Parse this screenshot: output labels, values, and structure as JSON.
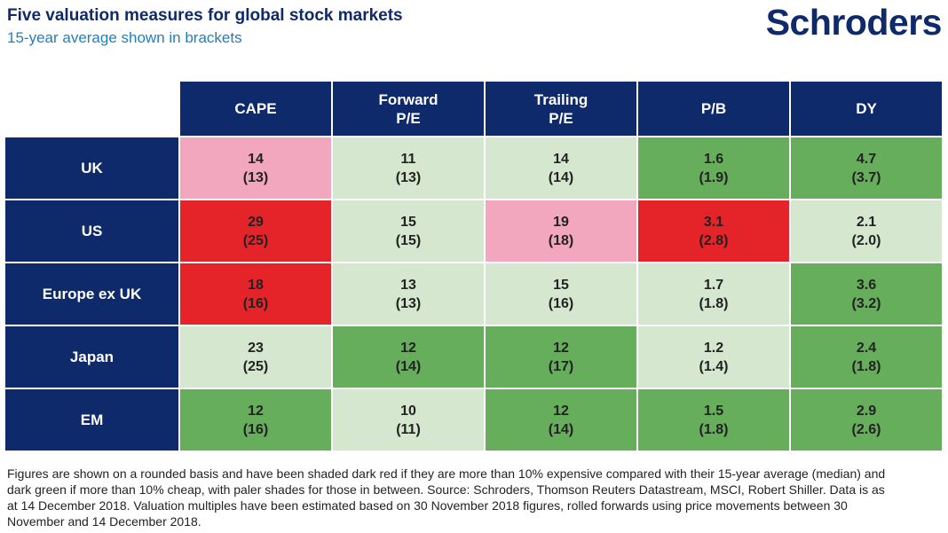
{
  "header": {
    "title": "Five valuation measures for global stock markets",
    "subtitle": "15-year average shown in brackets",
    "logo": "Schroders"
  },
  "colors": {
    "header_navy": "#0f2a6b",
    "dark-red": "#e5242a",
    "light-red": "#f2a7bf",
    "dark-green": "#66ad5c",
    "light-green": "#d5e8cf"
  },
  "chart_data": {
    "type": "table",
    "columns": [
      {
        "line1": "CAPE",
        "line2": ""
      },
      {
        "line1": "Forward",
        "line2": "P/E"
      },
      {
        "line1": "Trailing",
        "line2": "P/E"
      },
      {
        "line1": "P/B",
        "line2": ""
      },
      {
        "line1": "DY",
        "line2": ""
      }
    ],
    "rows": [
      {
        "label": "UK",
        "cells": [
          {
            "value": "14",
            "avg": "(13)",
            "shade": "light-red"
          },
          {
            "value": "11",
            "avg": "(13)",
            "shade": "light-green"
          },
          {
            "value": "14",
            "avg": "(14)",
            "shade": "light-green"
          },
          {
            "value": "1.6",
            "avg": "(1.9)",
            "shade": "dark-green"
          },
          {
            "value": "4.7",
            "avg": "(3.7)",
            "shade": "dark-green"
          }
        ]
      },
      {
        "label": "US",
        "cells": [
          {
            "value": "29",
            "avg": "(25)",
            "shade": "dark-red"
          },
          {
            "value": "15",
            "avg": "(15)",
            "shade": "light-green"
          },
          {
            "value": "19",
            "avg": "(18)",
            "shade": "light-red"
          },
          {
            "value": "3.1",
            "avg": "(2.8)",
            "shade": "dark-red"
          },
          {
            "value": "2.1",
            "avg": "(2.0)",
            "shade": "light-green"
          }
        ]
      },
      {
        "label": "Europe ex UK",
        "cells": [
          {
            "value": "18",
            "avg": "(16)",
            "shade": "dark-red"
          },
          {
            "value": "13",
            "avg": "(13)",
            "shade": "light-green"
          },
          {
            "value": "15",
            "avg": "(16)",
            "shade": "light-green"
          },
          {
            "value": "1.7",
            "avg": "(1.8)",
            "shade": "light-green"
          },
          {
            "value": "3.6",
            "avg": "(3.2)",
            "shade": "dark-green"
          }
        ]
      },
      {
        "label": "Japan",
        "cells": [
          {
            "value": "23",
            "avg": "(25)",
            "shade": "light-green"
          },
          {
            "value": "12",
            "avg": "(14)",
            "shade": "dark-green"
          },
          {
            "value": "12",
            "avg": "(17)",
            "shade": "dark-green"
          },
          {
            "value": "1.2",
            "avg": "(1.4)",
            "shade": "light-green"
          },
          {
            "value": "2.4",
            "avg": "(1.8)",
            "shade": "dark-green"
          }
        ]
      },
      {
        "label": "EM",
        "cells": [
          {
            "value": "12",
            "avg": "(16)",
            "shade": "dark-green"
          },
          {
            "value": "10",
            "avg": "(11)",
            "shade": "light-green"
          },
          {
            "value": "12",
            "avg": "(14)",
            "shade": "dark-green"
          },
          {
            "value": "1.5",
            "avg": "(1.8)",
            "shade": "dark-green"
          },
          {
            "value": "2.9",
            "avg": "(2.6)",
            "shade": "dark-green"
          }
        ]
      }
    ]
  },
  "footnote": "Figures are shown on a rounded basis and have been shaded dark red if they are more than 10% expensive compared with their 15-year average (median) and dark green if more than 10% cheap, with paler shades for those in between. Source: Schroders, Thomson Reuters Datastream, MSCI, Robert Shiller. Data is as at 14 December 2018. Valuation multiples have been estimated based on 30 November 2018 figures, rolled forwards using price movements between 30 November and 14 December 2018."
}
